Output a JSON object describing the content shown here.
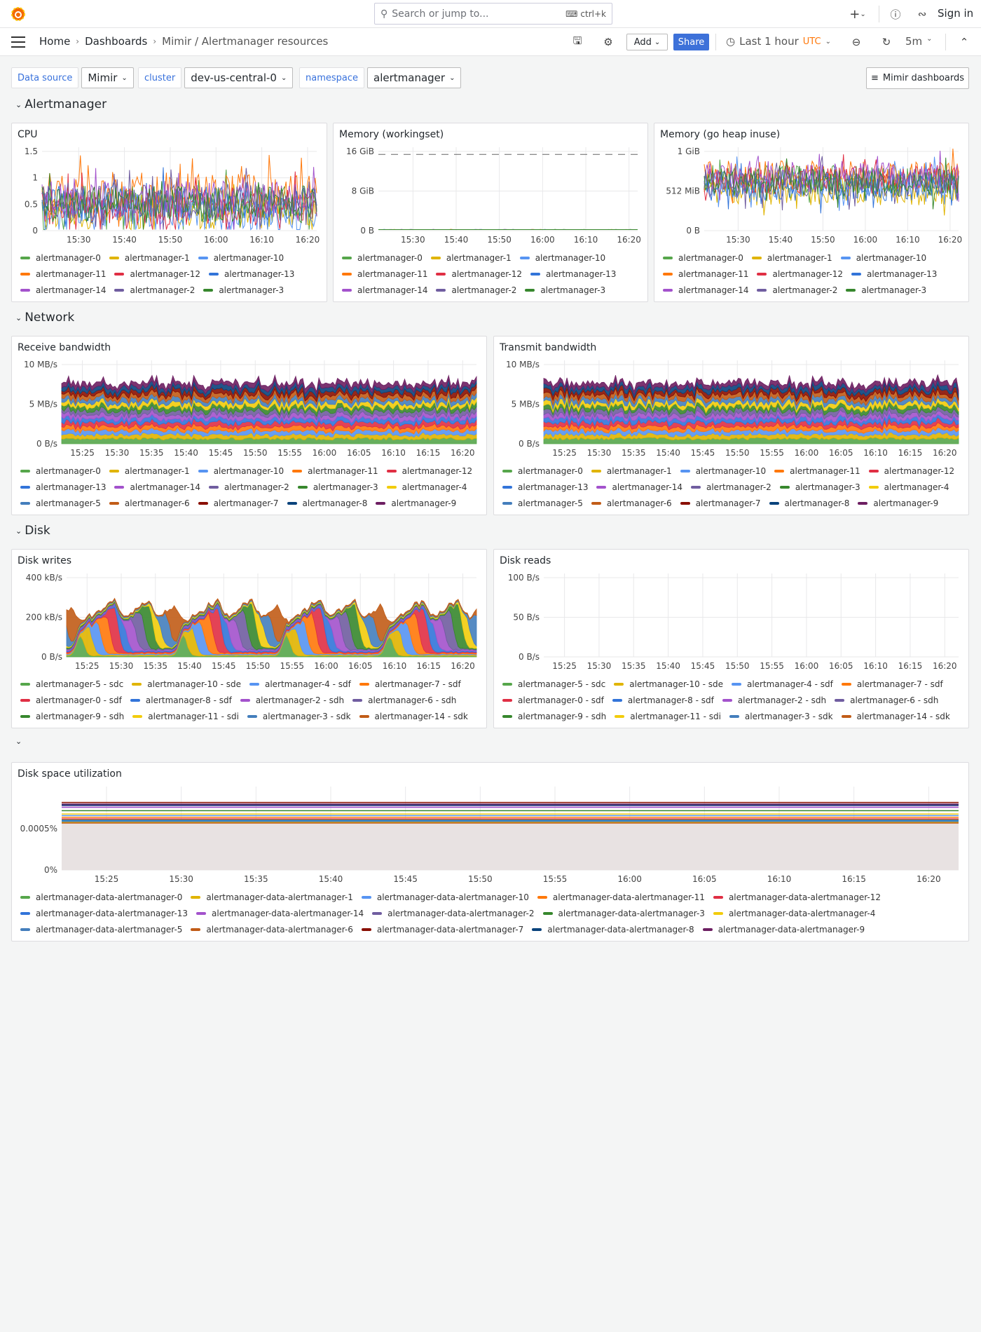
{
  "topbar": {
    "search_placeholder": "Search or jump to...",
    "shortcut": "ctrl+k",
    "sign_in": "Sign in",
    "icons": [
      "grafana-logo",
      "search-icon",
      "keyboard-icon",
      "plus-icon",
      "help-icon",
      "rss-icon"
    ]
  },
  "breadcrumb": {
    "home": "Home",
    "dashboards": "Dashboards",
    "current": "Mimir / Alertmanager resources"
  },
  "toolbar": {
    "add": "Add",
    "share": "Share",
    "time_range": "Last 1 hour",
    "timezone": "UTC",
    "refresh": "5m"
  },
  "variables": [
    {
      "label": "Data source",
      "value": "Mimir"
    },
    {
      "label": "cluster",
      "value": "dev-us-central-0"
    },
    {
      "label": "namespace",
      "value": "alertmanager"
    }
  ],
  "dashboards_link": "Mimir dashboards",
  "rows": {
    "alertmanager": "Alertmanager",
    "network": "Network",
    "disk": "Disk",
    "untitled": ""
  },
  "colors": {
    "accent": "#3d71d9",
    "utc": "#ff780a"
  },
  "panels": {
    "cpu": {
      "title": "CPU",
      "kind": "lines",
      "y_ticks": [
        "1.5",
        "1",
        "0.5",
        "0"
      ],
      "y_max": 1.6,
      "x_ticks": [
        "15:30",
        "15:40",
        "15:50",
        "16:00",
        "16:10",
        "16:20"
      ],
      "legend": [
        {
          "label": "alertmanager-0",
          "color": "#56a64b"
        },
        {
          "label": "alertmanager-1",
          "color": "#e0b400"
        },
        {
          "label": "alertmanager-10",
          "color": "#5794f2"
        },
        {
          "label": "alertmanager-11",
          "color": "#ff780a"
        },
        {
          "label": "alertmanager-12",
          "color": "#e02f44"
        },
        {
          "label": "alertmanager-13",
          "color": "#3274d9"
        },
        {
          "label": "alertmanager-14",
          "color": "#a352cc"
        },
        {
          "label": "alertmanager-2",
          "color": "#705da0"
        },
        {
          "label": "alertmanager-3",
          "color": "#37872d"
        }
      ]
    },
    "mem_ws": {
      "title": "Memory (workingset)",
      "kind": "lines",
      "y_ticks": [
        "16 GiB",
        "8 GiB",
        "0 B"
      ],
      "x_ticks": [
        "15:30",
        "15:40",
        "15:50",
        "16:00",
        "16:10",
        "16:20"
      ],
      "legend": [
        {
          "label": "alertmanager-0",
          "color": "#56a64b"
        },
        {
          "label": "alertmanager-1",
          "color": "#e0b400"
        },
        {
          "label": "alertmanager-10",
          "color": "#5794f2"
        },
        {
          "label": "alertmanager-11",
          "color": "#ff780a"
        },
        {
          "label": "alertmanager-12",
          "color": "#e02f44"
        },
        {
          "label": "alertmanager-13",
          "color": "#3274d9"
        },
        {
          "label": "alertmanager-14",
          "color": "#a352cc"
        },
        {
          "label": "alertmanager-2",
          "color": "#705da0"
        },
        {
          "label": "alertmanager-3",
          "color": "#37872d"
        }
      ]
    },
    "mem_heap": {
      "title": "Memory (go heap inuse)",
      "kind": "lines",
      "y_ticks": [
        "1 GiB",
        "512 MiB",
        "0 B"
      ],
      "x_ticks": [
        "15:30",
        "15:40",
        "15:50",
        "16:00",
        "16:10",
        "16:20"
      ],
      "legend": [
        {
          "label": "alertmanager-0",
          "color": "#56a64b"
        },
        {
          "label": "alertmanager-1",
          "color": "#e0b400"
        },
        {
          "label": "alertmanager-10",
          "color": "#5794f2"
        },
        {
          "label": "alertmanager-11",
          "color": "#ff780a"
        },
        {
          "label": "alertmanager-12",
          "color": "#e02f44"
        },
        {
          "label": "alertmanager-13",
          "color": "#3274d9"
        },
        {
          "label": "alertmanager-14",
          "color": "#a352cc"
        },
        {
          "label": "alertmanager-2",
          "color": "#705da0"
        },
        {
          "label": "alertmanager-3",
          "color": "#37872d"
        }
      ]
    },
    "rx": {
      "title": "Receive bandwidth",
      "kind": "stacked",
      "y_ticks": [
        "10 MB/s",
        "5 MB/s",
        "0 B/s"
      ],
      "x_ticks": [
        "15:25",
        "15:30",
        "15:35",
        "15:40",
        "15:45",
        "15:50",
        "15:55",
        "16:00",
        "16:05",
        "16:10",
        "16:15",
        "16:20"
      ],
      "legend": [
        {
          "label": "alertmanager-0",
          "color": "#56a64b"
        },
        {
          "label": "alertmanager-1",
          "color": "#e0b400"
        },
        {
          "label": "alertmanager-10",
          "color": "#5794f2"
        },
        {
          "label": "alertmanager-11",
          "color": "#ff780a"
        },
        {
          "label": "alertmanager-12",
          "color": "#e02f44"
        },
        {
          "label": "alertmanager-13",
          "color": "#3274d9"
        },
        {
          "label": "alertmanager-14",
          "color": "#a352cc"
        },
        {
          "label": "alertmanager-2",
          "color": "#705da0"
        },
        {
          "label": "alertmanager-3",
          "color": "#37872d"
        },
        {
          "label": "alertmanager-4",
          "color": "#f2cc0c"
        },
        {
          "label": "alertmanager-5",
          "color": "#447ebc"
        },
        {
          "label": "alertmanager-6",
          "color": "#c15c17"
        },
        {
          "label": "alertmanager-7",
          "color": "#890f02"
        },
        {
          "label": "alertmanager-8",
          "color": "#0a437c"
        },
        {
          "label": "alertmanager-9",
          "color": "#6d1f62"
        }
      ]
    },
    "tx": {
      "title": "Transmit bandwidth",
      "kind": "stacked",
      "y_ticks": [
        "10 MB/s",
        "5 MB/s",
        "0 B/s"
      ],
      "x_ticks": [
        "15:25",
        "15:30",
        "15:35",
        "15:40",
        "15:45",
        "15:50",
        "15:55",
        "16:00",
        "16:05",
        "16:10",
        "16:15",
        "16:20"
      ],
      "legend": [
        {
          "label": "alertmanager-0",
          "color": "#56a64b"
        },
        {
          "label": "alertmanager-1",
          "color": "#e0b400"
        },
        {
          "label": "alertmanager-10",
          "color": "#5794f2"
        },
        {
          "label": "alertmanager-11",
          "color": "#ff780a"
        },
        {
          "label": "alertmanager-12",
          "color": "#e02f44"
        },
        {
          "label": "alertmanager-13",
          "color": "#3274d9"
        },
        {
          "label": "alertmanager-14",
          "color": "#a352cc"
        },
        {
          "label": "alertmanager-2",
          "color": "#705da0"
        },
        {
          "label": "alertmanager-3",
          "color": "#37872d"
        },
        {
          "label": "alertmanager-4",
          "color": "#f2cc0c"
        },
        {
          "label": "alertmanager-5",
          "color": "#447ebc"
        },
        {
          "label": "alertmanager-6",
          "color": "#c15c17"
        },
        {
          "label": "alertmanager-7",
          "color": "#890f02"
        },
        {
          "label": "alertmanager-8",
          "color": "#0a437c"
        },
        {
          "label": "alertmanager-9",
          "color": "#6d1f62"
        }
      ]
    },
    "dw": {
      "title": "Disk writes",
      "kind": "bursts",
      "y_ticks": [
        "400 kB/s",
        "200 kB/s",
        "0 B/s"
      ],
      "x_ticks": [
        "15:25",
        "15:30",
        "15:35",
        "15:40",
        "15:45",
        "15:50",
        "15:55",
        "16:00",
        "16:05",
        "16:10",
        "16:15",
        "16:20"
      ],
      "legend": [
        {
          "label": "alertmanager-5 - sdc",
          "color": "#56a64b"
        },
        {
          "label": "alertmanager-10 - sde",
          "color": "#e0b400"
        },
        {
          "label": "alertmanager-4 - sdf",
          "color": "#5794f2"
        },
        {
          "label": "alertmanager-7 - sdf",
          "color": "#ff780a"
        },
        {
          "label": "alertmanager-0 - sdf",
          "color": "#e02f44"
        },
        {
          "label": "alertmanager-8 - sdf",
          "color": "#3274d9"
        },
        {
          "label": "alertmanager-2 - sdh",
          "color": "#a352cc"
        },
        {
          "label": "alertmanager-6 - sdh",
          "color": "#705da0"
        },
        {
          "label": "alertmanager-9 - sdh",
          "color": "#37872d"
        },
        {
          "label": "alertmanager-11 - sdi",
          "color": "#f2cc0c"
        },
        {
          "label": "alertmanager-3 - sdk",
          "color": "#447ebc"
        },
        {
          "label": "alertmanager-14 - sdk",
          "color": "#c15c17"
        }
      ]
    },
    "dr": {
      "title": "Disk reads",
      "kind": "empty",
      "y_ticks": [
        "100 B/s",
        "50 B/s",
        "0 B/s"
      ],
      "x_ticks": [
        "15:25",
        "15:30",
        "15:35",
        "15:40",
        "15:45",
        "15:50",
        "15:55",
        "16:00",
        "16:05",
        "16:10",
        "16:15",
        "16:20"
      ],
      "legend": [
        {
          "label": "alertmanager-5 - sdc",
          "color": "#56a64b"
        },
        {
          "label": "alertmanager-10 - sde",
          "color": "#e0b400"
        },
        {
          "label": "alertmanager-4 - sdf",
          "color": "#5794f2"
        },
        {
          "label": "alertmanager-7 - sdf",
          "color": "#ff780a"
        },
        {
          "label": "alertmanager-0 - sdf",
          "color": "#e02f44"
        },
        {
          "label": "alertmanager-8 - sdf",
          "color": "#3274d9"
        },
        {
          "label": "alertmanager-2 - sdh",
          "color": "#a352cc"
        },
        {
          "label": "alertmanager-6 - sdh",
          "color": "#705da0"
        },
        {
          "label": "alertmanager-9 - sdh",
          "color": "#37872d"
        },
        {
          "label": "alertmanager-11 - sdi",
          "color": "#f2cc0c"
        },
        {
          "label": "alertmanager-3 - sdk",
          "color": "#447ebc"
        },
        {
          "label": "alertmanager-14 - sdk",
          "color": "#c15c17"
        }
      ]
    },
    "ds": {
      "title": "Disk space utilization",
      "kind": "flat",
      "y_ticks": [
        "0.0005%",
        "0%"
      ],
      "x_ticks": [
        "15:25",
        "15:30",
        "15:35",
        "15:40",
        "15:45",
        "15:50",
        "15:55",
        "16:00",
        "16:05",
        "16:10",
        "16:15",
        "16:20"
      ],
      "legend": [
        {
          "label": "alertmanager-data-alertmanager-0",
          "color": "#56a64b"
        },
        {
          "label": "alertmanager-data-alertmanager-1",
          "color": "#e0b400"
        },
        {
          "label": "alertmanager-data-alertmanager-10",
          "color": "#5794f2"
        },
        {
          "label": "alertmanager-data-alertmanager-11",
          "color": "#ff780a"
        },
        {
          "label": "alertmanager-data-alertmanager-12",
          "color": "#e02f44"
        },
        {
          "label": "alertmanager-data-alertmanager-13",
          "color": "#3274d9"
        },
        {
          "label": "alertmanager-data-alertmanager-14",
          "color": "#a352cc"
        },
        {
          "label": "alertmanager-data-alertmanager-2",
          "color": "#705da0"
        },
        {
          "label": "alertmanager-data-alertmanager-3",
          "color": "#37872d"
        },
        {
          "label": "alertmanager-data-alertmanager-4",
          "color": "#f2cc0c"
        },
        {
          "label": "alertmanager-data-alertmanager-5",
          "color": "#447ebc"
        },
        {
          "label": "alertmanager-data-alertmanager-6",
          "color": "#c15c17"
        },
        {
          "label": "alertmanager-data-alertmanager-7",
          "color": "#890f02"
        },
        {
          "label": "alertmanager-data-alertmanager-8",
          "color": "#0a437c"
        },
        {
          "label": "alertmanager-data-alertmanager-9",
          "color": "#6d1f62"
        }
      ]
    }
  }
}
